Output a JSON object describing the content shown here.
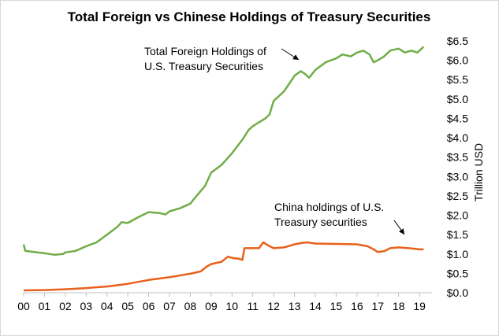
{
  "chart_data": {
    "type": "line",
    "title": "Total Foreign vs Chinese Holdings of Treasury Securities",
    "ylabel": "Trillion USD",
    "xlabel": "",
    "x_tick_labels": [
      "00",
      "01",
      "02",
      "03",
      "04",
      "05",
      "06",
      "07",
      "08",
      "09",
      "10",
      "11",
      "12",
      "13",
      "14",
      "15",
      "16",
      "17",
      "18",
      "19"
    ],
    "y_tick_labels": [
      "$0.0",
      "$0.5",
      "$1.0",
      "$1.5",
      "$2.0",
      "$2.5",
      "$3.0",
      "$3.5",
      "$4.0",
      "$4.5",
      "$5.0",
      "$5.5",
      "$6.0",
      "$6.5"
    ],
    "ylim": [
      0,
      6.5
    ],
    "xlim": [
      2000,
      2019.6
    ],
    "grid": false,
    "annotations": [
      {
        "lines": [
          "Total Foreign Holdings of",
          "U.S. Treasury Securities"
        ],
        "series": "total"
      },
      {
        "lines": [
          "China holdings of U.S.",
          "Treasury securities"
        ],
        "series": "china"
      }
    ],
    "series": [
      {
        "id": "total",
        "color": "#70ad47",
        "points": [
          [
            2000.0,
            1.25
          ],
          [
            2000.08,
            1.08
          ],
          [
            2000.5,
            1.05
          ],
          [
            2001.0,
            1.02
          ],
          [
            2001.5,
            0.98
          ],
          [
            2001.9,
            1.0
          ],
          [
            2002.0,
            1.04
          ],
          [
            2002.5,
            1.08
          ],
          [
            2003.0,
            1.2
          ],
          [
            2003.5,
            1.3
          ],
          [
            2004.0,
            1.5
          ],
          [
            2004.5,
            1.7
          ],
          [
            2004.7,
            1.82
          ],
          [
            2005.0,
            1.8
          ],
          [
            2005.5,
            1.95
          ],
          [
            2006.0,
            2.08
          ],
          [
            2006.5,
            2.06
          ],
          [
            2006.8,
            2.02
          ],
          [
            2007.0,
            2.1
          ],
          [
            2007.5,
            2.18
          ],
          [
            2008.0,
            2.3
          ],
          [
            2008.3,
            2.5
          ],
          [
            2008.7,
            2.75
          ],
          [
            2009.0,
            3.1
          ],
          [
            2009.5,
            3.3
          ],
          [
            2010.0,
            3.6
          ],
          [
            2010.5,
            3.95
          ],
          [
            2010.8,
            4.2
          ],
          [
            2011.0,
            4.3
          ],
          [
            2011.3,
            4.4
          ],
          [
            2011.6,
            4.5
          ],
          [
            2011.8,
            4.6
          ],
          [
            2012.0,
            4.95
          ],
          [
            2012.5,
            5.2
          ],
          [
            2013.0,
            5.6
          ],
          [
            2013.3,
            5.72
          ],
          [
            2013.5,
            5.65
          ],
          [
            2013.7,
            5.55
          ],
          [
            2014.0,
            5.75
          ],
          [
            2014.5,
            5.95
          ],
          [
            2015.0,
            6.05
          ],
          [
            2015.3,
            6.15
          ],
          [
            2015.7,
            6.1
          ],
          [
            2016.0,
            6.2
          ],
          [
            2016.3,
            6.25
          ],
          [
            2016.6,
            6.15
          ],
          [
            2016.8,
            5.95
          ],
          [
            2017.0,
            6.0
          ],
          [
            2017.3,
            6.1
          ],
          [
            2017.6,
            6.25
          ],
          [
            2018.0,
            6.3
          ],
          [
            2018.3,
            6.2
          ],
          [
            2018.6,
            6.25
          ],
          [
            2018.9,
            6.2
          ],
          [
            2019.0,
            6.25
          ],
          [
            2019.2,
            6.35
          ]
        ]
      },
      {
        "id": "china",
        "color": "#e8611a",
        "points": [
          [
            2000.0,
            0.06
          ],
          [
            2001.0,
            0.07
          ],
          [
            2002.0,
            0.09
          ],
          [
            2003.0,
            0.12
          ],
          [
            2004.0,
            0.16
          ],
          [
            2005.0,
            0.23
          ],
          [
            2006.0,
            0.33
          ],
          [
            2007.0,
            0.4
          ],
          [
            2008.0,
            0.49
          ],
          [
            2008.5,
            0.55
          ],
          [
            2008.8,
            0.68
          ],
          [
            2009.0,
            0.74
          ],
          [
            2009.5,
            0.8
          ],
          [
            2009.8,
            0.93
          ],
          [
            2010.0,
            0.9
          ],
          [
            2010.3,
            0.88
          ],
          [
            2010.5,
            0.85
          ],
          [
            2010.6,
            1.15
          ],
          [
            2011.0,
            1.15
          ],
          [
            2011.3,
            1.15
          ],
          [
            2011.5,
            1.3
          ],
          [
            2011.8,
            1.2
          ],
          [
            2012.0,
            1.15
          ],
          [
            2012.5,
            1.17
          ],
          [
            2013.0,
            1.25
          ],
          [
            2013.3,
            1.28
          ],
          [
            2013.6,
            1.3
          ],
          [
            2014.0,
            1.27
          ],
          [
            2015.0,
            1.26
          ],
          [
            2016.0,
            1.25
          ],
          [
            2016.5,
            1.2
          ],
          [
            2016.8,
            1.12
          ],
          [
            2017.0,
            1.05
          ],
          [
            2017.3,
            1.07
          ],
          [
            2017.6,
            1.15
          ],
          [
            2018.0,
            1.17
          ],
          [
            2018.5,
            1.15
          ],
          [
            2019.0,
            1.12
          ],
          [
            2019.2,
            1.12
          ]
        ]
      }
    ]
  }
}
